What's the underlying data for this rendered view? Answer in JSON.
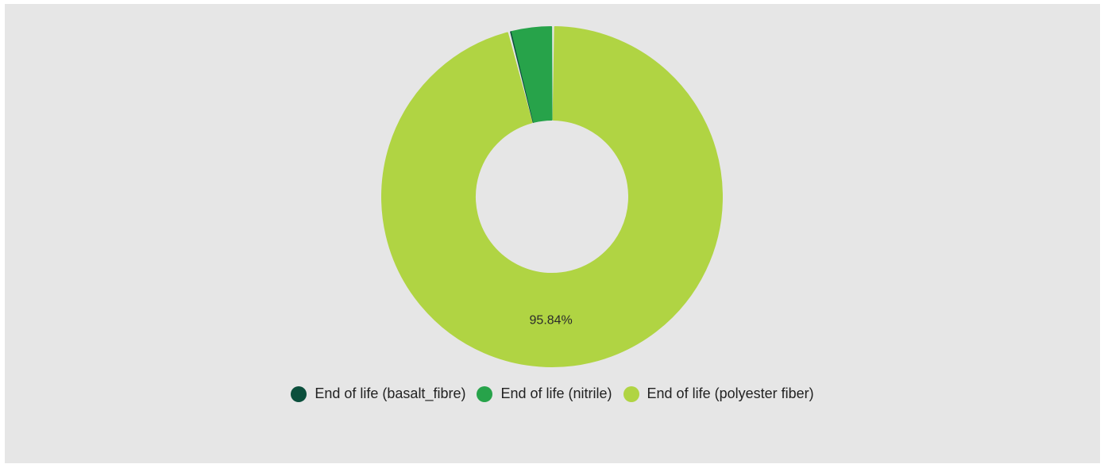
{
  "chart_data": {
    "type": "pie",
    "variant": "donut",
    "title": "",
    "series": [
      {
        "name": "End of life (basalt_fibre)",
        "value": 0.12,
        "color": "#0b4f3c",
        "label": ""
      },
      {
        "name": "End of life (nitrile)",
        "value": 4.04,
        "color": "#27a34a",
        "label": ""
      },
      {
        "name": "End of life (polyester fiber)",
        "value": 95.84,
        "color": "#b0d443",
        "label": "95.84%"
      }
    ],
    "legend_position": "bottom"
  }
}
